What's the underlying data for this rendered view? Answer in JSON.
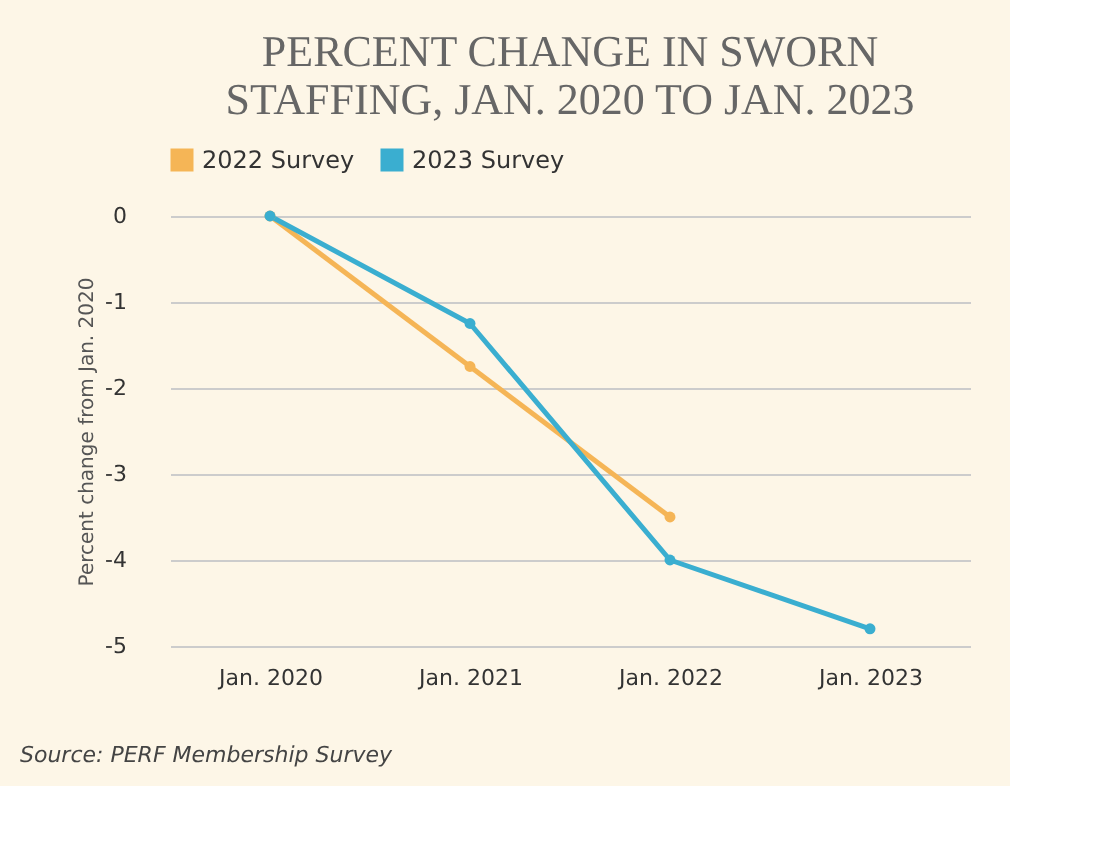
{
  "chart_data": {
    "type": "line",
    "title": "PERCENT CHANGE IN SWORN\nSTAFFING, JAN. 2020 TO JAN. 2023",
    "ylabel": "Percent change from Jan. 2020",
    "categories": [
      "Jan. 2020",
      "Jan. 2021",
      "Jan. 2022",
      "Jan. 2023"
    ],
    "series": [
      {
        "name": "2022 Survey",
        "color": "#f5b556",
        "values": [
          0,
          -1.75,
          -3.5,
          null
        ]
      },
      {
        "name": "2023 Survey",
        "color": "#3aaed0",
        "values": [
          0,
          -1.25,
          -4.0,
          -4.8
        ]
      }
    ],
    "ylim": [
      -5,
      0
    ],
    "yticks": [
      0,
      -1,
      -2,
      -3,
      -4,
      -5
    ],
    "grid": "y",
    "legend": "top",
    "marker": "circle",
    "line_style": "solid",
    "annotations": [
      "Source: PERF Membership Survey"
    ]
  }
}
